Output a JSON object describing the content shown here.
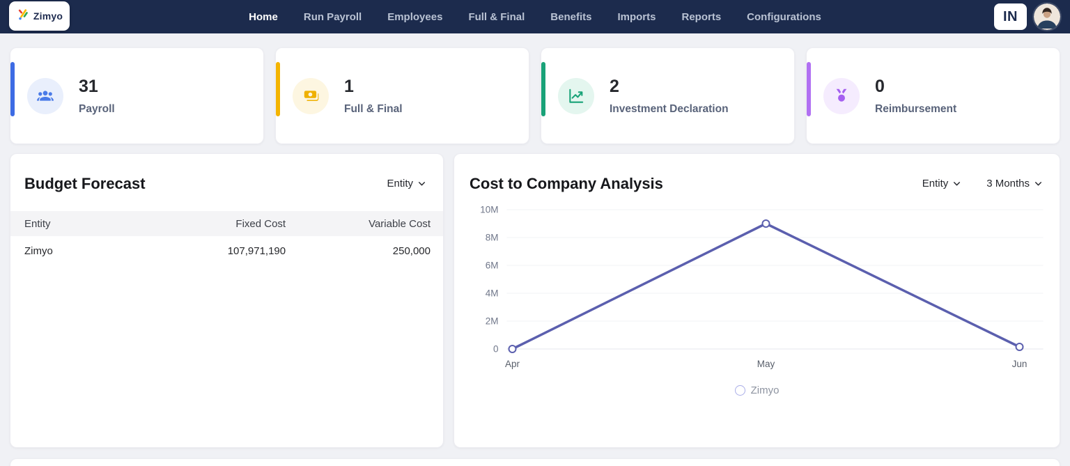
{
  "nav": {
    "brand": "Zimyo",
    "items": [
      {
        "label": "Home",
        "active": true
      },
      {
        "label": "Run Payroll",
        "active": false
      },
      {
        "label": "Employees",
        "active": false
      },
      {
        "label": "Full & Final",
        "active": false
      },
      {
        "label": "Benefits",
        "active": false
      },
      {
        "label": "Imports",
        "active": false
      },
      {
        "label": "Reports",
        "active": false
      },
      {
        "label": "Configurations",
        "active": false
      }
    ],
    "locale_badge": "IN"
  },
  "stat_cards": [
    {
      "value": "31",
      "label": "Payroll",
      "icon": "users-icon",
      "accent": "#3d6be4",
      "icon_color": "#4a7be8",
      "icon_bg": "#e9effc"
    },
    {
      "value": "1",
      "label": "Full & Final",
      "icon": "cash-icon",
      "accent": "#f4b400",
      "icon_color": "#efb000",
      "icon_bg": "#fdf6e1"
    },
    {
      "value": "2",
      "label": "Investment Declaration",
      "icon": "trend-chart-icon",
      "accent": "#19a278",
      "icon_color": "#17a277",
      "icon_bg": "#e4f6ef"
    },
    {
      "value": "0",
      "label": "Reimbursement",
      "icon": "medal-icon",
      "accent": "#b170f2",
      "icon_color": "#a560f0",
      "icon_bg": "#f5ecfe"
    }
  ],
  "budget_forecast": {
    "title": "Budget Forecast",
    "entity_filter": "Entity",
    "table": {
      "headers": [
        "Entity",
        "Fixed Cost",
        "Variable Cost"
      ],
      "rows": [
        [
          "Zimyo",
          "107,971,190",
          "250,000"
        ]
      ]
    }
  },
  "cost_analysis": {
    "title": "Cost to Company Analysis",
    "entity_filter": "Entity",
    "period_filter": "3 Months"
  },
  "chart_data": {
    "type": "line",
    "title": "Cost to Company Analysis",
    "x": [
      "Apr",
      "May",
      "Jun"
    ],
    "series": [
      {
        "name": "Zimyo",
        "values": [
          0,
          9000000,
          150000
        ]
      }
    ],
    "yticks": [
      "0",
      "2M",
      "4M",
      "6M",
      "8M",
      "10M"
    ],
    "ylim": [
      0,
      10000000
    ],
    "xlabel": "",
    "ylabel": "",
    "grid": true,
    "legend_position": "bottom",
    "line_color": "#5b5fae",
    "marker": "hollow-circle",
    "legend_ring_color": "#a9ade8"
  }
}
